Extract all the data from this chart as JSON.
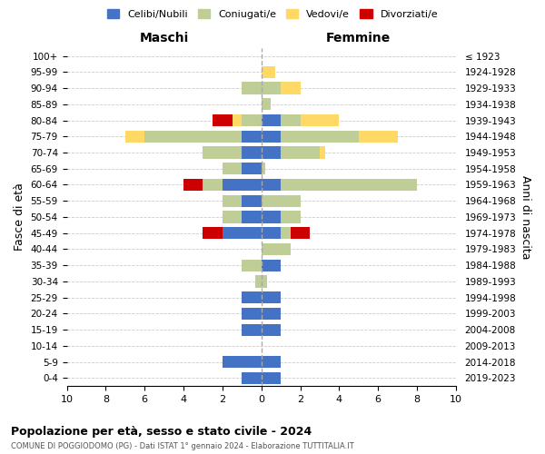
{
  "age_groups": [
    "0-4",
    "5-9",
    "10-14",
    "15-19",
    "20-24",
    "25-29",
    "30-34",
    "35-39",
    "40-44",
    "45-49",
    "50-54",
    "55-59",
    "60-64",
    "65-69",
    "70-74",
    "75-79",
    "80-84",
    "85-89",
    "90-94",
    "95-99",
    "100+"
  ],
  "birth_years": [
    "2019-2023",
    "2014-2018",
    "2009-2013",
    "2004-2008",
    "1999-2003",
    "1994-1998",
    "1989-1993",
    "1984-1988",
    "1979-1983",
    "1974-1978",
    "1969-1973",
    "1964-1968",
    "1959-1963",
    "1954-1958",
    "1949-1953",
    "1944-1948",
    "1939-1943",
    "1934-1938",
    "1929-1933",
    "1924-1928",
    "≤ 1923"
  ],
  "colors": {
    "celibi": "#4472C4",
    "coniugati": "#BFCD96",
    "vedovi": "#FFD966",
    "divorziati": "#CC0000"
  },
  "male_celibi": [
    1,
    2,
    0,
    1,
    1,
    1,
    0,
    0,
    0,
    2,
    1,
    1,
    2,
    1,
    1,
    1,
    0,
    0,
    0,
    0,
    0
  ],
  "male_coniugati": [
    0,
    0,
    0,
    0,
    0,
    0,
    0.3,
    1,
    0,
    0,
    1,
    1,
    1,
    1,
    2,
    5,
    1,
    0,
    1,
    0,
    0
  ],
  "male_vedovi": [
    0,
    0,
    0,
    0,
    0,
    0,
    0,
    0,
    0,
    0,
    0,
    0,
    0,
    0,
    0,
    1,
    0.5,
    0,
    0,
    0,
    0
  ],
  "male_divorziati": [
    0,
    0,
    0,
    0,
    0,
    0,
    0,
    0,
    0,
    1,
    0,
    0,
    1,
    0,
    0,
    0,
    1,
    0,
    0,
    0,
    0
  ],
  "female_celibi": [
    1,
    1,
    0,
    1,
    1,
    1,
    0,
    1,
    0,
    1,
    1,
    0,
    1,
    0,
    1,
    1,
    1,
    0,
    0,
    0,
    0
  ],
  "female_coniugati": [
    0,
    0,
    0,
    0,
    0,
    0,
    0.3,
    0,
    1.5,
    0.5,
    1,
    2,
    7,
    0.2,
    2,
    4,
    1,
    0.5,
    1,
    0,
    0
  ],
  "female_vedovi": [
    0,
    0,
    0,
    0,
    0,
    0,
    0,
    0,
    0,
    0,
    0,
    0,
    0,
    0,
    0.3,
    2,
    2,
    0,
    1,
    0.7,
    0
  ],
  "female_divorziati": [
    0,
    0,
    0,
    0,
    0,
    0,
    0,
    0,
    0,
    1,
    0,
    0,
    0,
    0,
    0,
    0,
    0,
    0,
    0,
    0,
    0
  ],
  "title": "Popolazione per età, sesso e stato civile - 2024",
  "subtitle": "COMUNE DI POGGIODOMO (PG) - Dati ISTAT 1° gennaio 2024 - Elaborazione TUTTITALIA.IT",
  "xlabel_left": "Maschi",
  "xlabel_right": "Femmine",
  "ylabel_left": "Fasce di età",
  "ylabel_right": "Anni di nascita",
  "xlim": 10,
  "legend_labels": [
    "Celibi/Nubili",
    "Coniugati/e",
    "Vedovi/e",
    "Divorziati/e"
  ]
}
